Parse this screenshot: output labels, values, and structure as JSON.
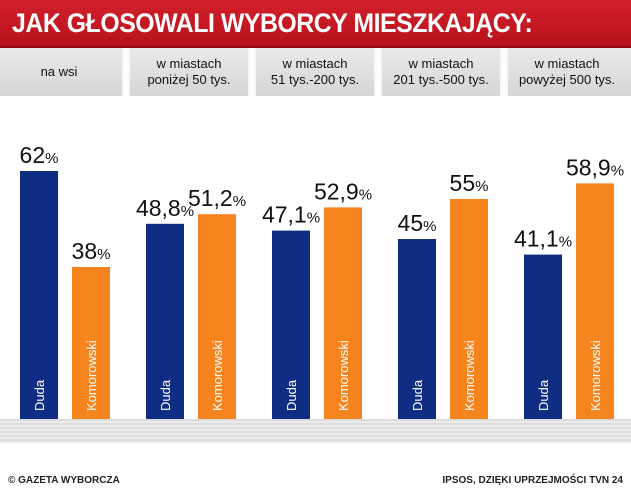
{
  "title": "JAK GŁOSOWALI WYBORCY MIESZKAJĄCY:",
  "footer": {
    "left": "© GAZETA WYBORCZA",
    "right": "IPSOS, DZIĘKI UPRZEJMOŚCI TVN 24"
  },
  "colors": {
    "duda": "#0f2d82",
    "komorowski": "#f5841f",
    "banner": "#c8161f"
  },
  "chart_data": {
    "type": "bar",
    "title": "JAK GŁOSOWALI WYBORCY MIESZKAJĄCY:",
    "categories": [
      [
        "na wsi"
      ],
      [
        "w miastach",
        "poniżej 50 tys."
      ],
      [
        "w miastach",
        "51 tys.-200 tys."
      ],
      [
        "w miastach",
        "201 tys.-500 tys."
      ],
      [
        "w miastach",
        "powyżej 500 tys."
      ]
    ],
    "series": [
      {
        "name": "Duda",
        "values": [
          62,
          48.8,
          47.1,
          45,
          41.1
        ],
        "labels": [
          "62",
          "48,8",
          "47,1",
          "45",
          "41,1"
        ]
      },
      {
        "name": "Komorowski",
        "values": [
          38,
          51.2,
          52.9,
          55,
          58.9
        ],
        "labels": [
          "38",
          "51,2",
          "52,9",
          "55",
          "58,9"
        ]
      }
    ],
    "unit": "%",
    "ylim": [
      0,
      100
    ],
    "grid": false,
    "legend": "none"
  }
}
